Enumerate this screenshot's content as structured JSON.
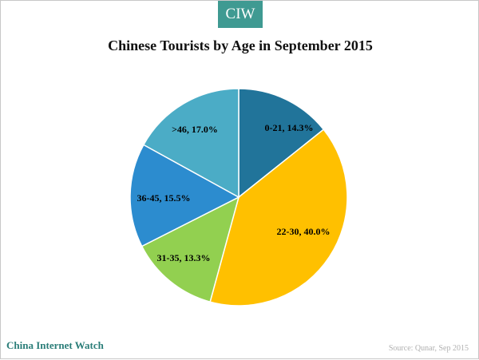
{
  "badge": "CIW",
  "footer": {
    "brand": "China Internet Watch",
    "source": "Source: Qunar, Sep 2015"
  },
  "chart_data": {
    "type": "pie",
    "title": "Chinese Tourists by Age in September 2015",
    "slices": [
      {
        "label": "0-21",
        "value": 14.3,
        "color": "#21749a",
        "text": "0-21, 14.3%"
      },
      {
        "label": "22-30",
        "value": 40.0,
        "color": "#ffc000",
        "text": "22-30, 40.0%"
      },
      {
        "label": "31-35",
        "value": 13.3,
        "color": "#92d050",
        "text": "31-35, 13.3%"
      },
      {
        "label": "36-45",
        "value": 15.5,
        "color": "#2c8ccf",
        "text": "36-45, 15.5%"
      },
      {
        "label": ">46",
        "value": 17.0,
        "color": "#4bacc6",
        "text": ">46, 17.0%"
      }
    ]
  }
}
